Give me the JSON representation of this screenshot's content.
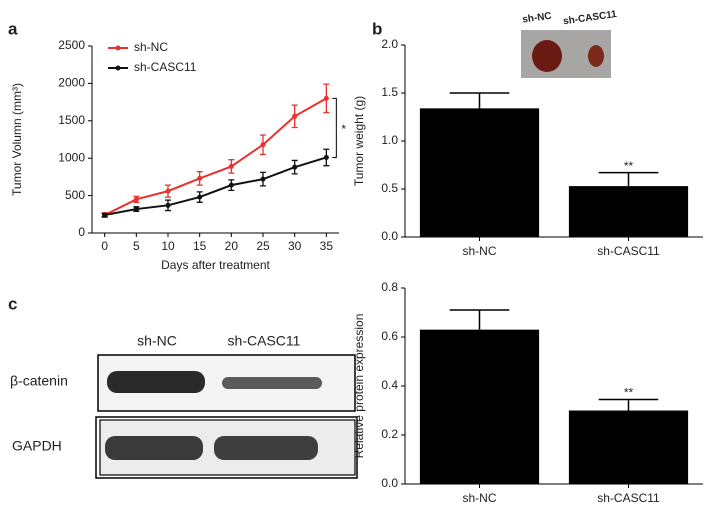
{
  "chart_data": [
    {
      "type": "line",
      "panel_label": "a",
      "xlabel": "Days after treatment",
      "ylabel": "Tumor Volumn (mm³)",
      "x": [
        0,
        5,
        10,
        15,
        20,
        25,
        30,
        35
      ],
      "xlim": [
        -2,
        37
      ],
      "xticks": [
        0,
        5,
        10,
        15,
        20,
        25,
        30,
        35
      ],
      "ylim": [
        0,
        2500
      ],
      "yticks": [
        0,
        500,
        1000,
        1500,
        2000,
        2500
      ],
      "legend": "upper left",
      "annotation": "*",
      "series": [
        {
          "name": "sh-NC",
          "color": "#e8322d",
          "values": [
            240,
            450,
            560,
            730,
            890,
            1180,
            1560,
            1800
          ],
          "errors": [
            30,
            40,
            80,
            90,
            90,
            130,
            150,
            190
          ]
        },
        {
          "name": "sh-CASC11",
          "color": "#111111",
          "values": [
            240,
            320,
            370,
            480,
            640,
            720,
            880,
            1010
          ],
          "errors": [
            20,
            30,
            70,
            70,
            70,
            90,
            90,
            110
          ]
        }
      ]
    },
    {
      "type": "bar",
      "panel_label": "b",
      "ylabel": "Tumor weight (g)",
      "categories": [
        "sh-NC",
        "sh-CASC11"
      ],
      "values": [
        1.34,
        0.53
      ],
      "errors": [
        0.16,
        0.14
      ],
      "color": "#000000",
      "annotation": "**",
      "ylim": [
        0,
        2
      ],
      "yticks": [
        {
          "value": 0,
          "label": "0.0"
        },
        0.5,
        {
          "value": 1,
          "label": "1.0"
        },
        1.5,
        {
          "value": 2,
          "label": "2.0"
        }
      ],
      "inset_labels": [
        "sh-NC",
        "sh-CASC11"
      ]
    },
    {
      "type": "bar",
      "ylabel": "Relative  protein expression",
      "categories": [
        "sh-NC",
        "sh-CASC11"
      ],
      "values": [
        0.63,
        0.3
      ],
      "errors": [
        0.08,
        0.045
      ],
      "color": "#000000",
      "annotation": "**",
      "ylim": [
        0,
        0.8
      ],
      "yticks": [
        {
          "value": 0,
          "label": "0.0"
        },
        0.2,
        0.4,
        0.6,
        0.8
      ]
    }
  ],
  "blot": {
    "panel_label": "c",
    "columns": [
      "sh-NC",
      "sh-CASC11"
    ],
    "rows": [
      "β-catenin",
      "GAPDH"
    ]
  }
}
